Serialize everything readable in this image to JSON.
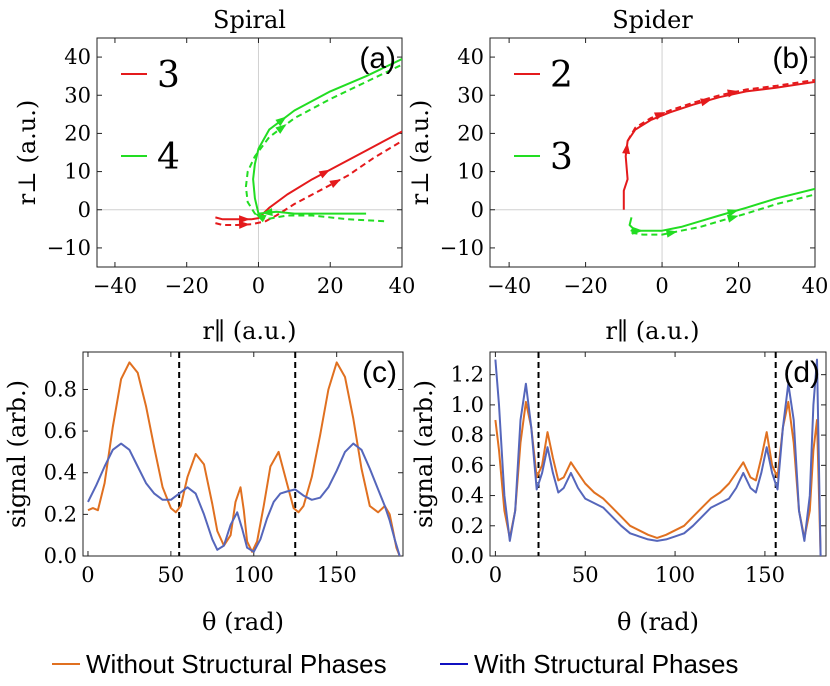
{
  "legend": {
    "orange": {
      "label": "Without Structural Phases",
      "color": "#e07020"
    },
    "blue": {
      "label": "With Structural Phases",
      "color": "#1010c0"
    }
  },
  "chart_data": [
    {
      "id": "a",
      "type": "line",
      "title": "Spiral",
      "panel_label": "(a)",
      "xlabel": "r∥ (a.u.)",
      "ylabel": "r⊥ (a.u.)",
      "xlim": [
        -45,
        40
      ],
      "ylim": [
        -15,
        45
      ],
      "xticks": [
        -40,
        -20,
        0,
        20,
        40
      ],
      "yticks": [
        -10,
        0,
        10,
        20,
        30,
        40
      ],
      "gridlines": {
        "x": [
          0
        ],
        "y": [
          0
        ]
      },
      "legend_placement": "top-left",
      "series": [
        {
          "name": "3",
          "color": "#e41a1c",
          "style": "solid",
          "x": [
            -12,
            -10,
            -6,
            -2,
            0,
            3,
            8,
            15,
            22,
            30,
            40
          ],
          "y": [
            -2,
            -2.5,
            -2.5,
            -2.5,
            -2.2,
            0.5,
            4,
            8,
            11.5,
            15.5,
            20.5
          ],
          "arrows_at": [
            2,
            4
          ],
          "arrow_x": [
            -7.5,
            28
          ]
        },
        {
          "name": "",
          "color": "#e41a1c",
          "style": "dashed",
          "x": [
            -12,
            -10,
            -6,
            -2,
            2,
            5,
            10,
            18,
            25,
            32,
            40
          ],
          "y": [
            -3.5,
            -4,
            -4,
            -3.8,
            -3,
            -1.5,
            1.5,
            5.5,
            9,
            13.5,
            18
          ],
          "arrow_x": [
            -7.5,
            28
          ]
        },
        {
          "name": "4",
          "color": "#22dd22",
          "style": "solid",
          "x": [
            30,
            20,
            10,
            5,
            0,
            -1,
            -1.5,
            -1,
            0,
            3,
            10,
            20,
            30,
            40
          ],
          "y": [
            -1,
            -1,
            -1,
            -0.5,
            -1,
            3,
            8,
            12,
            16,
            21,
            26,
            31,
            35,
            39.5
          ],
          "arrow_x": [
            -4.5,
            30
          ]
        },
        {
          "name": "",
          "color": "#22dd22",
          "style": "dashed",
          "x": [
            35,
            25,
            15,
            8,
            2,
            -1,
            -3,
            -3.5,
            -3,
            -1,
            3,
            10,
            20,
            30,
            40
          ],
          "y": [
            -3,
            -2.5,
            -1.5,
            -1.5,
            -2.5,
            -1,
            2,
            6,
            10,
            14,
            19,
            24,
            29,
            33.5,
            38
          ],
          "arrow_x": [
            -4.5,
            30
          ]
        }
      ]
    },
    {
      "id": "b",
      "type": "line",
      "title": "Spider",
      "panel_label": "(b)",
      "xlabel": "r∥ (a.u.)",
      "ylabel": "r⊥ (a.u.)",
      "xlim": [
        -45,
        40
      ],
      "ylim": [
        -15,
        45
      ],
      "xticks": [
        -40,
        -20,
        0,
        20,
        40
      ],
      "yticks": [
        -10,
        0,
        10,
        20,
        30,
        40
      ],
      "gridlines": {
        "x": [
          0
        ],
        "y": [
          0
        ]
      },
      "legend_placement": "top-left",
      "series": [
        {
          "name": "2",
          "color": "#e41a1c",
          "style": "solid",
          "x": [
            -10,
            -10,
            -9,
            -9.5,
            -9,
            -7,
            -3,
            2,
            8,
            15,
            22,
            30,
            40
          ],
          "y": [
            0,
            5,
            8,
            14,
            18,
            21,
            23.5,
            25.5,
            27.5,
            29.5,
            31,
            32,
            33.5
          ]
        },
        {
          "name": "",
          "color": "#e41a1c",
          "style": "dashed",
          "x": [
            -9,
            -7,
            -3,
            2,
            8,
            15,
            22,
            30,
            40
          ],
          "y": [
            18,
            21.5,
            24,
            26,
            28,
            30,
            31.5,
            32.5,
            34
          ]
        },
        {
          "name": "3",
          "color": "#22dd22",
          "style": "solid",
          "x": [
            -8,
            -8.5,
            -7.5,
            -8,
            -5,
            0,
            5,
            10,
            15,
            22,
            30,
            40
          ],
          "y": [
            -2,
            -4,
            -5,
            -5.5,
            -5.5,
            -5.5,
            -4.5,
            -3,
            -1.5,
            0.5,
            3,
            5.5
          ]
        },
        {
          "name": "",
          "color": "#22dd22",
          "style": "dashed",
          "x": [
            -8,
            -5,
            0,
            5,
            10,
            15,
            22,
            30,
            40
          ],
          "y": [
            -6,
            -6.5,
            -6.5,
            -5.5,
            -4.5,
            -3,
            -1,
            1.5,
            4
          ]
        }
      ]
    },
    {
      "id": "c",
      "type": "line",
      "title": "",
      "panel_label": "(c)",
      "xlabel": "θ (rad)",
      "ylabel": "signal (arb.)",
      "xlim": [
        -3,
        190
      ],
      "ylim": [
        0,
        0.98
      ],
      "xticks": [
        0,
        50,
        100,
        150
      ],
      "yticks": [
        0.0,
        0.2,
        0.4,
        0.6,
        0.8
      ],
      "vlines": [
        55,
        125
      ],
      "series": [
        {
          "name": "Without Structural Phases",
          "color": "#e07020",
          "x": [
            0,
            3,
            6,
            10,
            15,
            20,
            25,
            30,
            35,
            40,
            45,
            50,
            53,
            56,
            60,
            65,
            70,
            75,
            78,
            82,
            86,
            89,
            92,
            94,
            96,
            99,
            102,
            106,
            110,
            115,
            120,
            124,
            127,
            130,
            135,
            140,
            145,
            150,
            155,
            160,
            165,
            170,
            175,
            179,
            182,
            184,
            186,
            188
          ],
          "y": [
            0.22,
            0.23,
            0.22,
            0.35,
            0.62,
            0.85,
            0.93,
            0.88,
            0.72,
            0.52,
            0.33,
            0.23,
            0.21,
            0.24,
            0.38,
            0.49,
            0.44,
            0.25,
            0.12,
            0.05,
            0.1,
            0.26,
            0.33,
            0.22,
            0.07,
            0.02,
            0.07,
            0.24,
            0.43,
            0.5,
            0.35,
            0.23,
            0.21,
            0.24,
            0.38,
            0.58,
            0.8,
            0.93,
            0.86,
            0.66,
            0.42,
            0.24,
            0.21,
            0.24,
            0.2,
            0.12,
            0.04,
            0.0
          ]
        },
        {
          "name": "With Structural Phases",
          "color": "#5566bb",
          "x": [
            0,
            5,
            10,
            15,
            20,
            25,
            30,
            35,
            40,
            45,
            50,
            55,
            60,
            65,
            70,
            75,
            78,
            82,
            86,
            90,
            93,
            96,
            100,
            104,
            108,
            112,
            116,
            120,
            125,
            130,
            135,
            140,
            145,
            150,
            155,
            160,
            165,
            170,
            175,
            179,
            182,
            185,
            188
          ],
          "y": [
            0.26,
            0.34,
            0.43,
            0.51,
            0.54,
            0.51,
            0.43,
            0.35,
            0.3,
            0.27,
            0.27,
            0.3,
            0.33,
            0.3,
            0.2,
            0.08,
            0.03,
            0.05,
            0.15,
            0.21,
            0.13,
            0.04,
            0.02,
            0.08,
            0.18,
            0.26,
            0.3,
            0.31,
            0.32,
            0.29,
            0.27,
            0.28,
            0.33,
            0.41,
            0.5,
            0.54,
            0.51,
            0.42,
            0.32,
            0.24,
            0.17,
            0.08,
            0.0
          ]
        }
      ]
    },
    {
      "id": "d",
      "type": "line",
      "title": "",
      "panel_label": "(d)",
      "xlabel": "θ (rad)",
      "ylabel": "signal (arb.)",
      "xlim": [
        -3,
        184
      ],
      "ylim": [
        0,
        1.35
      ],
      "xticks": [
        0,
        50,
        100,
        150
      ],
      "yticks": [
        0.0,
        0.2,
        0.4,
        0.6,
        0.8,
        1.0,
        1.2
      ],
      "vlines": [
        24,
        156
      ],
      "series": [
        {
          "name": "Without Structural Phases",
          "color": "#e07020",
          "x": [
            0,
            2,
            5,
            8,
            11,
            14,
            17,
            20,
            23,
            26,
            29,
            32,
            35,
            38,
            42,
            46,
            50,
            55,
            60,
            65,
            70,
            75,
            80,
            85,
            90,
            95,
            100,
            105,
            110,
            115,
            120,
            125,
            130,
            134,
            138,
            142,
            145,
            148,
            151,
            154,
            157,
            160,
            163,
            166,
            169,
            172,
            175,
            177,
            179,
            181
          ],
          "y": [
            0.9,
            0.7,
            0.3,
            0.12,
            0.3,
            0.75,
            1.02,
            0.85,
            0.52,
            0.6,
            0.82,
            0.65,
            0.5,
            0.52,
            0.62,
            0.55,
            0.48,
            0.42,
            0.38,
            0.32,
            0.26,
            0.2,
            0.17,
            0.14,
            0.12,
            0.14,
            0.17,
            0.2,
            0.26,
            0.32,
            0.38,
            0.42,
            0.48,
            0.55,
            0.62,
            0.52,
            0.5,
            0.65,
            0.82,
            0.6,
            0.52,
            0.85,
            1.02,
            0.75,
            0.3,
            0.12,
            0.3,
            0.7,
            0.9,
            0.0
          ]
        },
        {
          "name": "With Structural Phases",
          "color": "#5566bb",
          "x": [
            0,
            2,
            5,
            8,
            11,
            14,
            17,
            20,
            23,
            26,
            29,
            32,
            35,
            38,
            42,
            46,
            50,
            55,
            60,
            65,
            70,
            75,
            80,
            85,
            90,
            95,
            100,
            105,
            110,
            115,
            120,
            125,
            130,
            134,
            138,
            142,
            145,
            148,
            151,
            154,
            157,
            160,
            163,
            166,
            169,
            172,
            175,
            177,
            179,
            181
          ],
          "y": [
            1.3,
            1.0,
            0.4,
            0.1,
            0.3,
            0.9,
            1.14,
            0.85,
            0.44,
            0.55,
            0.72,
            0.55,
            0.42,
            0.45,
            0.55,
            0.45,
            0.38,
            0.35,
            0.32,
            0.26,
            0.2,
            0.15,
            0.13,
            0.11,
            0.1,
            0.11,
            0.13,
            0.15,
            0.2,
            0.26,
            0.32,
            0.35,
            0.38,
            0.45,
            0.55,
            0.45,
            0.42,
            0.55,
            0.72,
            0.55,
            0.44,
            0.85,
            1.14,
            0.9,
            0.3,
            0.1,
            0.4,
            1.0,
            1.3,
            0.0
          ]
        }
      ]
    }
  ]
}
